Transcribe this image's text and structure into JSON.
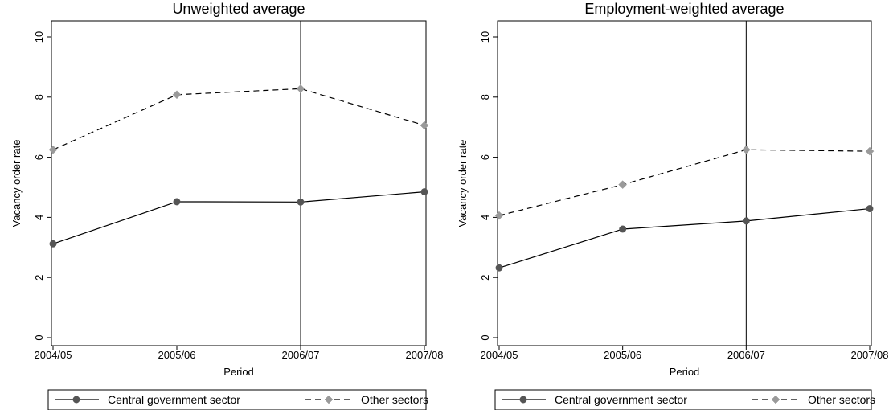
{
  "chart_data": [
    {
      "type": "line",
      "title": "Unweighted average",
      "xlabel": "Period",
      "ylabel": "Vacancy order rate",
      "categories": [
        "2004/05",
        "2005/06",
        "2006/07",
        "2007/08"
      ],
      "ylim": [
        0,
        10
      ],
      "yticks": [
        0,
        2,
        4,
        6,
        8,
        10
      ],
      "grid": false,
      "vertical_reference_line": "2006/07",
      "legend_position": "bottom",
      "series": [
        {
          "name": "Central government sector",
          "values": [
            3.12,
            4.52,
            4.51,
            4.85
          ],
          "color": "#555555",
          "line": "solid",
          "marker": "circle"
        },
        {
          "name": "Other sectors",
          "values": [
            6.25,
            8.08,
            8.28,
            7.06
          ],
          "color": "#9a9a9a",
          "line": "dashed",
          "marker": "diamond"
        }
      ]
    },
    {
      "type": "line",
      "title": "Employment-weighted average",
      "xlabel": "Period",
      "ylabel": "Vacancy order rate",
      "categories": [
        "2004/05",
        "2005/06",
        "2006/07",
        "2007/08"
      ],
      "ylim": [
        0,
        10
      ],
      "yticks": [
        0,
        2,
        4,
        6,
        8,
        10
      ],
      "grid": false,
      "vertical_reference_line": "2006/07",
      "legend_position": "bottom",
      "series": [
        {
          "name": "Central government sector",
          "values": [
            2.32,
            3.61,
            3.88,
            4.29
          ],
          "color": "#555555",
          "line": "solid",
          "marker": "circle"
        },
        {
          "name": "Other sectors",
          "values": [
            4.06,
            5.09,
            6.25,
            6.2
          ],
          "color": "#9a9a9a",
          "line": "dashed",
          "marker": "diamond"
        }
      ]
    }
  ]
}
